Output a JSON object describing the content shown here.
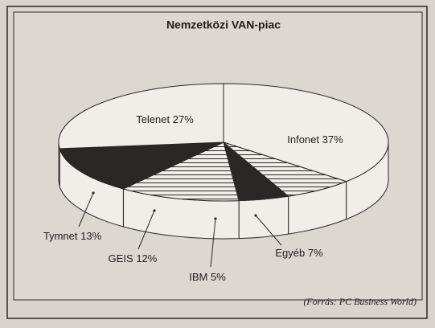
{
  "chart_data": {
    "type": "pie3d",
    "title": "Nemzetközi VAN-piac",
    "categories": [
      "Infonet",
      "Egyéb",
      "IBM",
      "GEIS",
      "Tymnet",
      "Telenet"
    ],
    "values": [
      37,
      7,
      5,
      12,
      13,
      27
    ],
    "value_labels": [
      "37%",
      "7%",
      "5%",
      "12%",
      "13%",
      "27%"
    ],
    "colors": [
      "#f1eee7",
      "#f1eee7",
      "#2b2727",
      "#f1eee7",
      "#2b2727",
      "#f1eee7"
    ],
    "patterns": [
      null,
      "horizontal-lines",
      null,
      "horizontal-lines",
      null,
      null
    ],
    "source": "(Forrás: PC Business World)"
  }
}
